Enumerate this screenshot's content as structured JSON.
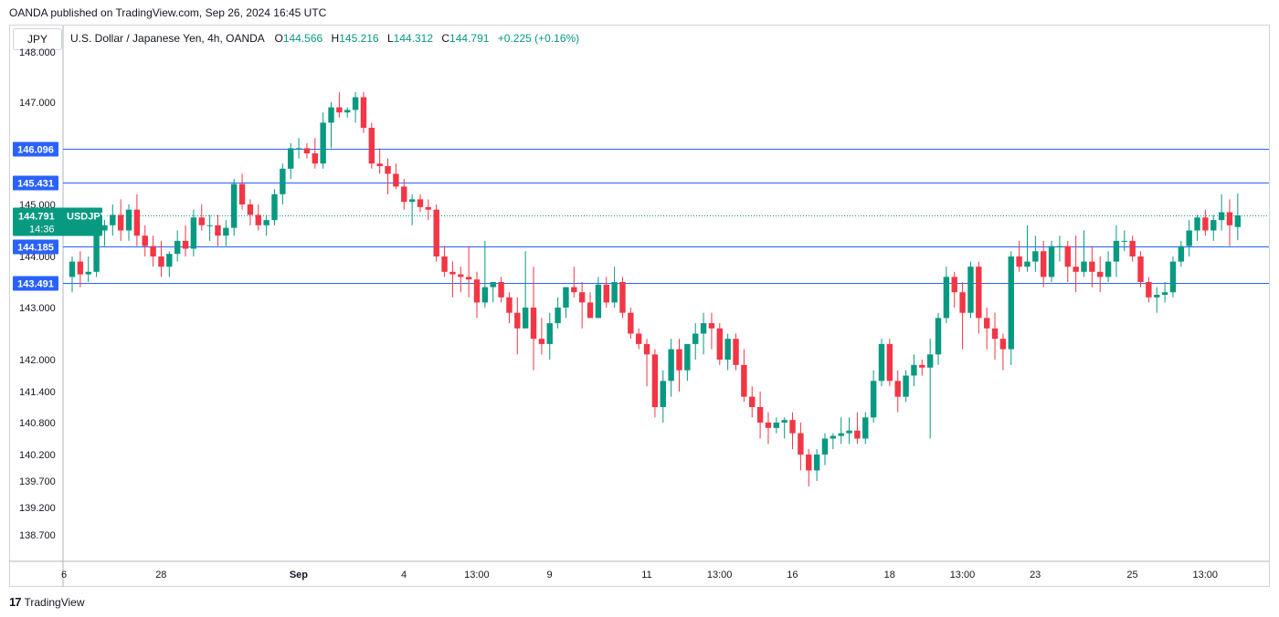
{
  "header": {
    "published": "OANDA published on TradingView.com, Sep 26, 2024 16:45 UTC"
  },
  "symbol_box": {
    "label": "JPY"
  },
  "legend": {
    "instrument": "U.S. Dollar / Japanese Yen, 4h, OANDA",
    "o_label": "O",
    "o_value": "144.566",
    "h_label": "H",
    "h_value": "145.216",
    "l_label": "L",
    "l_value": "144.312",
    "c_label": "C",
    "c_value": "144.791",
    "change": "+0.225 (+0.16%)"
  },
  "footer": {
    "brand": "TradingView"
  },
  "colors": {
    "up": "#089981",
    "down": "#f23645",
    "hline": "#2962ff",
    "price_line": "#089981",
    "axis_line": "#b2b5be",
    "text": "#131722"
  },
  "chart_data": {
    "type": "candlestick",
    "symbol": "USDJPY",
    "timeframe": "4h",
    "ylim": [
      138.0,
      148.0
    ],
    "y_ticks": [
      {
        "label": "148.000",
        "value": 148.0
      },
      {
        "label": "147.000",
        "value": 147.0
      },
      {
        "label": "145.000",
        "value": 145.0
      },
      {
        "label": "144.000",
        "value": 144.0
      },
      {
        "label": "143.000",
        "value": 143.0
      },
      {
        "label": "142.000",
        "value": 142.0
      },
      {
        "label": "141.400",
        "value": 141.4
      },
      {
        "label": "140.800",
        "value": 140.8
      },
      {
        "label": "140.200",
        "value": 140.2
      },
      {
        "label": "139.700",
        "value": 139.7
      },
      {
        "label": "139.200",
        "value": 139.2
      },
      {
        "label": "138.700",
        "value": 138.7
      }
    ],
    "x_ticks": [
      {
        "label": "6",
        "index": 0,
        "bold": false
      },
      {
        "label": "28",
        "index": 12,
        "bold": false
      },
      {
        "label": "Sep",
        "index": 29,
        "bold": true
      },
      {
        "label": "4",
        "index": 42,
        "bold": false
      },
      {
        "label": "13:00",
        "index": 51,
        "bold": false
      },
      {
        "label": "9",
        "index": 60,
        "bold": false
      },
      {
        "label": "11",
        "index": 72,
        "bold": false
      },
      {
        "label": "13:00",
        "index": 81,
        "bold": false
      },
      {
        "label": "16",
        "index": 90,
        "bold": false
      },
      {
        "label": "18",
        "index": 102,
        "bold": false
      },
      {
        "label": "13:00",
        "index": 111,
        "bold": false
      },
      {
        "label": "23",
        "index": 120,
        "bold": false
      },
      {
        "label": "25",
        "index": 132,
        "bold": false
      },
      {
        "label": "13:00",
        "index": 141,
        "bold": false
      }
    ],
    "horizontal_levels": [
      {
        "label": "146.096",
        "value": 146.096
      },
      {
        "label": "145.431",
        "value": 145.431
      },
      {
        "label": "144.185",
        "value": 144.185
      },
      {
        "label": "143.491",
        "value": 143.491
      }
    ],
    "last_price": {
      "label": "144.791",
      "symbol": "USDJPY",
      "countdown": "14:36",
      "value": 144.791
    },
    "candles": [
      [
        143.6,
        144.0,
        143.3,
        143.9
      ],
      [
        143.9,
        144.1,
        143.4,
        143.65
      ],
      [
        143.65,
        144.0,
        143.5,
        143.7
      ],
      [
        143.7,
        144.6,
        143.6,
        144.5
      ],
      [
        144.5,
        144.7,
        144.2,
        144.6
      ],
      [
        144.6,
        145.0,
        144.4,
        144.8
      ],
      [
        144.8,
        145.1,
        144.3,
        144.5
      ],
      [
        144.5,
        145.0,
        144.3,
        144.9
      ],
      [
        144.9,
        145.2,
        144.2,
        144.4
      ],
      [
        144.4,
        144.6,
        144.0,
        144.2
      ],
      [
        144.2,
        144.4,
        143.8,
        144.0
      ],
      [
        144.0,
        144.3,
        143.6,
        143.8
      ],
      [
        143.8,
        144.1,
        143.6,
        144.05
      ],
      [
        144.05,
        144.5,
        143.9,
        144.3
      ],
      [
        144.3,
        144.6,
        144.0,
        144.15
      ],
      [
        144.15,
        144.9,
        144.0,
        144.75
      ],
      [
        144.75,
        145.0,
        144.5,
        144.6
      ],
      [
        144.6,
        144.8,
        144.3,
        144.6
      ],
      [
        144.6,
        144.8,
        144.2,
        144.4
      ],
      [
        144.4,
        144.7,
        144.2,
        144.55
      ],
      [
        144.55,
        145.5,
        144.4,
        145.4
      ],
      [
        145.4,
        145.6,
        144.9,
        145.0
      ],
      [
        145.0,
        145.1,
        144.6,
        144.8
      ],
      [
        144.8,
        145.0,
        144.5,
        144.6
      ],
      [
        144.6,
        144.8,
        144.4,
        144.7
      ],
      [
        144.7,
        145.3,
        144.6,
        145.2
      ],
      [
        145.2,
        145.8,
        145.0,
        145.7
      ],
      [
        145.7,
        146.2,
        145.5,
        146.1
      ],
      [
        146.1,
        146.3,
        145.9,
        146.1
      ],
      [
        146.1,
        146.2,
        145.9,
        146.0
      ],
      [
        146.0,
        146.3,
        145.7,
        145.8
      ],
      [
        145.8,
        146.8,
        145.7,
        146.6
      ],
      [
        146.6,
        147.0,
        146.1,
        146.9
      ],
      [
        146.9,
        147.2,
        146.7,
        146.8
      ],
      [
        146.8,
        146.9,
        146.7,
        146.85
      ],
      [
        146.85,
        147.2,
        146.6,
        147.1
      ],
      [
        147.1,
        147.2,
        146.4,
        146.5
      ],
      [
        146.5,
        146.6,
        145.7,
        145.8
      ],
      [
        145.8,
        146.1,
        145.6,
        145.75
      ],
      [
        145.75,
        145.9,
        145.2,
        145.6
      ],
      [
        145.6,
        145.8,
        145.3,
        145.35
      ],
      [
        145.35,
        145.5,
        144.9,
        145.05
      ],
      [
        145.05,
        145.2,
        144.6,
        145.1
      ],
      [
        145.1,
        145.2,
        144.85,
        144.95
      ],
      [
        144.95,
        145.1,
        144.7,
        144.9
      ],
      [
        144.9,
        145.0,
        143.9,
        144.0
      ],
      [
        144.0,
        144.2,
        143.6,
        143.7
      ],
      [
        143.7,
        143.9,
        143.2,
        143.65
      ],
      [
        143.65,
        143.8,
        143.3,
        143.6
      ],
      [
        143.6,
        144.2,
        143.2,
        143.55
      ],
      [
        143.55,
        143.7,
        142.8,
        143.1
      ],
      [
        143.1,
        144.3,
        143.0,
        143.4
      ],
      [
        143.4,
        143.5,
        143.1,
        143.5
      ],
      [
        143.5,
        143.6,
        143.1,
        143.2
      ],
      [
        143.2,
        143.3,
        142.7,
        142.9
      ],
      [
        142.9,
        143.2,
        142.1,
        142.6
      ],
      [
        142.6,
        144.1,
        142.6,
        143.0
      ],
      [
        143.0,
        143.8,
        141.8,
        142.4
      ],
      [
        142.4,
        142.8,
        142.1,
        142.3
      ],
      [
        142.3,
        142.9,
        142.0,
        142.7
      ],
      [
        142.7,
        143.2,
        142.6,
        143.0
      ],
      [
        143.0,
        143.4,
        142.8,
        143.4
      ],
      [
        143.4,
        143.8,
        143.2,
        143.3
      ],
      [
        143.3,
        143.5,
        142.6,
        143.1
      ],
      [
        143.1,
        143.3,
        142.8,
        142.8
      ],
      [
        142.8,
        143.6,
        142.8,
        143.45
      ],
      [
        143.45,
        143.6,
        143.0,
        143.1
      ],
      [
        143.1,
        143.8,
        143.0,
        143.5
      ],
      [
        143.5,
        143.6,
        142.8,
        142.9
      ],
      [
        142.9,
        143.0,
        142.4,
        142.5
      ],
      [
        142.5,
        142.6,
        142.2,
        142.3
      ],
      [
        142.3,
        142.4,
        141.5,
        142.1
      ],
      [
        142.1,
        142.2,
        140.9,
        141.1
      ],
      [
        141.1,
        141.8,
        140.8,
        141.6
      ],
      [
        141.6,
        142.4,
        141.3,
        142.2
      ],
      [
        142.2,
        142.4,
        141.4,
        141.8
      ],
      [
        141.8,
        142.3,
        141.6,
        142.3
      ],
      [
        142.3,
        142.7,
        142.0,
        142.5
      ],
      [
        142.5,
        142.9,
        142.1,
        142.7
      ],
      [
        142.7,
        142.9,
        142.2,
        142.6
      ],
      [
        142.6,
        142.7,
        141.9,
        142.0
      ],
      [
        142.0,
        142.5,
        141.8,
        142.4
      ],
      [
        142.4,
        142.5,
        141.8,
        141.9
      ],
      [
        141.9,
        142.2,
        141.2,
        141.3
      ],
      [
        141.3,
        141.5,
        140.9,
        141.1
      ],
      [
        141.1,
        141.4,
        140.5,
        140.8
      ],
      [
        140.8,
        141.0,
        140.4,
        140.7
      ],
      [
        140.7,
        140.9,
        140.6,
        140.8
      ],
      [
        140.8,
        140.9,
        140.5,
        140.85
      ],
      [
        140.85,
        141.0,
        140.3,
        140.6
      ],
      [
        140.6,
        140.8,
        139.9,
        140.2
      ],
      [
        140.2,
        140.3,
        139.6,
        139.9
      ],
      [
        139.9,
        140.3,
        139.7,
        140.2
      ],
      [
        140.2,
        140.6,
        140.0,
        140.5
      ],
      [
        140.5,
        140.6,
        140.3,
        140.55
      ],
      [
        140.55,
        140.9,
        140.4,
        140.6
      ],
      [
        140.6,
        140.9,
        140.4,
        140.65
      ],
      [
        140.65,
        141.0,
        140.4,
        140.5
      ],
      [
        140.5,
        141.0,
        140.4,
        140.9
      ],
      [
        140.9,
        141.8,
        140.8,
        141.6
      ],
      [
        141.6,
        142.4,
        141.5,
        142.3
      ],
      [
        142.3,
        142.4,
        141.5,
        141.6
      ],
      [
        141.6,
        141.8,
        141.0,
        141.3
      ],
      [
        141.3,
        141.8,
        141.2,
        141.7
      ],
      [
        141.7,
        142.1,
        141.5,
        141.9
      ],
      [
        141.9,
        142.0,
        141.7,
        141.85
      ],
      [
        141.85,
        142.4,
        140.5,
        142.1
      ],
      [
        142.1,
        142.9,
        141.9,
        142.8
      ],
      [
        142.8,
        143.8,
        142.7,
        143.6
      ],
      [
        143.6,
        143.7,
        143.0,
        143.3
      ],
      [
        143.3,
        143.5,
        142.2,
        142.9
      ],
      [
        142.9,
        143.9,
        142.8,
        143.8
      ],
      [
        143.8,
        143.9,
        142.5,
        142.8
      ],
      [
        142.8,
        143.0,
        142.2,
        142.6
      ],
      [
        142.6,
        142.9,
        142.0,
        142.4
      ],
      [
        142.4,
        142.5,
        141.8,
        142.2
      ],
      [
        142.2,
        144.1,
        141.9,
        144.0
      ],
      [
        144.0,
        144.3,
        143.7,
        143.8
      ],
      [
        143.8,
        144.6,
        143.7,
        143.9
      ],
      [
        143.9,
        144.4,
        143.7,
        144.1
      ],
      [
        144.1,
        144.3,
        143.4,
        143.6
      ],
      [
        143.6,
        144.3,
        143.5,
        144.2
      ],
      [
        144.2,
        144.4,
        143.9,
        144.2
      ],
      [
        144.2,
        144.3,
        143.5,
        143.8
      ],
      [
        143.8,
        144.4,
        143.3,
        143.7
      ],
      [
        143.7,
        144.5,
        143.6,
        143.9
      ],
      [
        143.9,
        144.2,
        143.4,
        143.7
      ],
      [
        143.7,
        144.0,
        143.3,
        143.6
      ],
      [
        143.6,
        144.1,
        143.5,
        143.9
      ],
      [
        143.9,
        144.6,
        143.6,
        144.3
      ],
      [
        144.3,
        144.5,
        144.1,
        144.3
      ],
      [
        144.3,
        144.4,
        143.9,
        144.0
      ],
      [
        144.0,
        144.1,
        143.4,
        143.5
      ],
      [
        143.5,
        143.6,
        143.1,
        143.2
      ],
      [
        143.2,
        143.4,
        142.9,
        143.25
      ],
      [
        143.25,
        143.5,
        143.1,
        143.3
      ],
      [
        143.3,
        144.0,
        143.2,
        143.9
      ],
      [
        143.9,
        144.3,
        143.8,
        144.2
      ],
      [
        144.2,
        144.7,
        144.0,
        144.5
      ],
      [
        144.5,
        144.8,
        144.3,
        144.75
      ],
      [
        144.75,
        144.9,
        144.4,
        144.5
      ],
      [
        144.5,
        144.8,
        144.3,
        144.7
      ],
      [
        144.7,
        145.2,
        144.5,
        144.85
      ],
      [
        144.85,
        145.1,
        144.2,
        144.6
      ],
      [
        144.566,
        145.216,
        144.312,
        144.791
      ]
    ]
  }
}
